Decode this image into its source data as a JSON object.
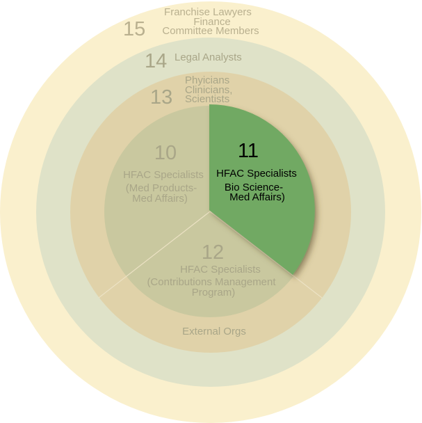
{
  "colors": {
    "ring15": "#faf0cd",
    "ring14": "#dfe2c8",
    "ring13": "#e0d2a9",
    "pie": "#c9c89f",
    "highlight": "#71a963",
    "text_muted": "#b9b08f",
    "text_active": "#000000"
  },
  "rings": [
    {
      "number": "15",
      "lines": [
        "Franchise Lawyers",
        "Finance",
        "Committee Members"
      ]
    },
    {
      "number": "14",
      "lines": [
        "Legal Analysts"
      ]
    },
    {
      "number": "13",
      "lines": [
        "Phyicians",
        "Clinicians,",
        "Scientists"
      ],
      "bottom_label": "External Orgs"
    }
  ],
  "segments": [
    {
      "number": "10",
      "lines": [
        "HFAC Specialists",
        "(Med Products-",
        "Med Affairs)"
      ]
    },
    {
      "number": "11",
      "lines": [
        "HFAC Specialists",
        "Bio Science-",
        "Med Affairs)"
      ],
      "highlighted": true
    },
    {
      "number": "12",
      "lines": [
        "HFAC Specialists",
        "(Contributions Management",
        "Program)"
      ]
    }
  ]
}
